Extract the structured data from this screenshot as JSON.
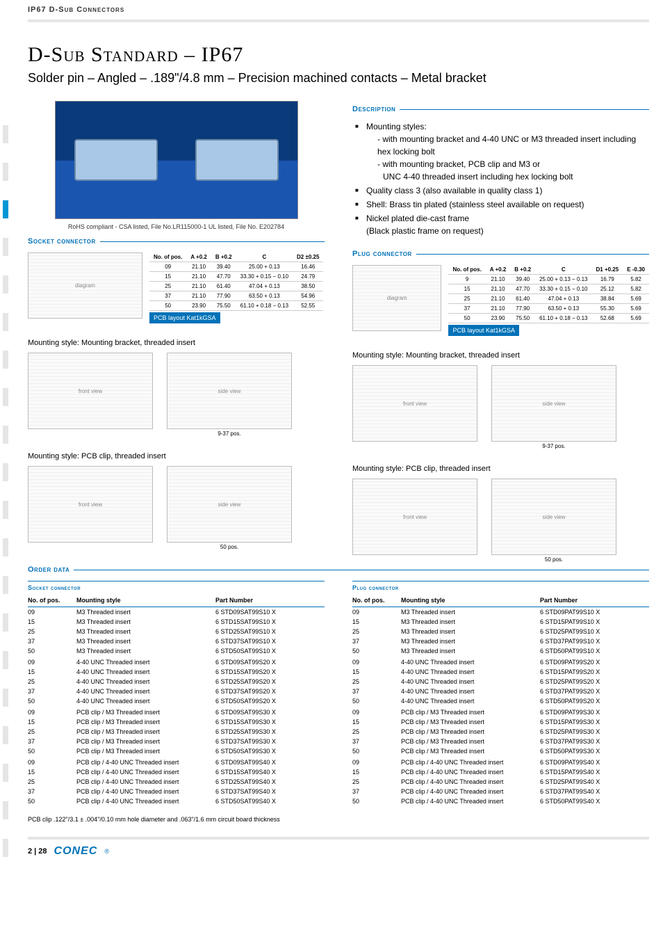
{
  "header": "IP67 D-Sub Connectors",
  "title": "D-Sub Standard – IP67",
  "subtitle": "Solder pin – Angled – .189\"/4.8 mm – Precision machined contacts – Metal bracket",
  "img_caption": "RoHS compliant - CSA listed, File No.LR115000-1 UL listed, File No. E202784",
  "sections": {
    "socket": "Socket connector",
    "plug": "Plug connector",
    "description": "Description",
    "order": "Order data"
  },
  "description": {
    "item1": "Mounting styles:",
    "item1a": "- with mounting bracket and 4-40 UNC or M3 threaded insert including hex locking bolt",
    "item1b": "- with mounting bracket, PCB clip and M3 or",
    "item1b2": "UNC 4-40 threaded insert including hex locking bolt",
    "item2": "Quality class 3 (also available in quality class 1)",
    "item3": "Shell: Brass tin plated (stainless steel available on request)",
    "item4": "Nickel plated die-cast frame",
    "item4b": "(Black plastic frame on request)"
  },
  "pcb_layout": "PCB layout Kat1kGSA",
  "socket_dims": {
    "headers": [
      "No. of pos.",
      "A +0.2",
      "B +0.2",
      "C",
      "D2 ±0.25"
    ],
    "rows": [
      [
        "09",
        "21.10",
        "39.40",
        "25.00 + 0.13",
        "16.46"
      ],
      [
        "15",
        "21.10",
        "47.70",
        "33.30 + 0.15 − 0.10",
        "24.79"
      ],
      [
        "25",
        "21.10",
        "61.40",
        "47.04 + 0.13",
        "38.50"
      ],
      [
        "37",
        "21.10",
        "77.90",
        "63.50 + 0.13",
        "54.96"
      ],
      [
        "50",
        "23.90",
        "75.50",
        "61.10 + 0.18 − 0.13",
        "52.55"
      ]
    ]
  },
  "plug_dims": {
    "headers": [
      "No. of pos.",
      "A +0.2",
      "B +0.2",
      "C",
      "D1 +0.25",
      "E -0.30"
    ],
    "rows": [
      [
        "9",
        "21.10",
        "39.40",
        "25.00 + 0.13 − 0.13",
        "16.79",
        "5.82"
      ],
      [
        "15",
        "21.10",
        "47.70",
        "33.30 + 0.15 − 0.10",
        "25.12",
        "5.82"
      ],
      [
        "25",
        "21.10",
        "61.40",
        "47.04 + 0.13",
        "38.84",
        "5.69"
      ],
      [
        "37",
        "21.10",
        "77.90",
        "63.50 + 0.13",
        "55.30",
        "5.69"
      ],
      [
        "50",
        "23.90",
        "75.50",
        "61.10 + 0.18 − 0.13",
        "52.68",
        "5.69"
      ]
    ]
  },
  "mount_labels": {
    "bracket": "Mounting style: Mounting bracket, threaded insert",
    "pcbclip": "Mounting style: PCB clip, threaded insert"
  },
  "pos_labels": {
    "a": "9-37 pos.",
    "b": "50 pos."
  },
  "order_headers": [
    "No. of pos.",
    "Mounting style",
    "Part Number"
  ],
  "order_groups": {
    "socket": "Socket connector",
    "plug": "Plug connector"
  },
  "mounting_styles": [
    "M3 Threaded insert",
    "4-40 UNC Threaded insert",
    "PCB clip / M3 Threaded insert",
    "PCB clip / 4-40 UNC Threaded insert"
  ],
  "positions": [
    "09",
    "15",
    "25",
    "37",
    "50"
  ],
  "socket_order": [
    [
      "09",
      "M3 Threaded insert",
      "6 STD09SAT99S10 X"
    ],
    [
      "15",
      "M3 Threaded insert",
      "6 STD15SAT99S10 X"
    ],
    [
      "25",
      "M3 Threaded insert",
      "6 STD25SAT99S10 X"
    ],
    [
      "37",
      "M3 Threaded insert",
      "6 STD37SAT99S10 X"
    ],
    [
      "50",
      "M3 Threaded insert",
      "6 STD50SAT99S10 X"
    ],
    [
      "09",
      "4-40 UNC Threaded insert",
      "6 STD09SAT99S20 X"
    ],
    [
      "15",
      "4-40 UNC Threaded insert",
      "6 STD15SAT99S20 X"
    ],
    [
      "25",
      "4-40 UNC Threaded insert",
      "6 STD25SAT99S20 X"
    ],
    [
      "37",
      "4-40 UNC Threaded insert",
      "6 STD37SAT99S20 X"
    ],
    [
      "50",
      "4-40 UNC Threaded insert",
      "6 STD50SAT99S20 X"
    ],
    [
      "09",
      "PCB clip / M3 Threaded insert",
      "6 STD09SAT99S30 X"
    ],
    [
      "15",
      "PCB clip / M3 Threaded insert",
      "6 STD15SAT99S30 X"
    ],
    [
      "25",
      "PCB clip / M3 Threaded insert",
      "6 STD25SAT99S30 X"
    ],
    [
      "37",
      "PCB clip / M3 Threaded insert",
      "6 STD37SAT99S30 X"
    ],
    [
      "50",
      "PCB clip / M3 Threaded insert",
      "6 STD50SAT99S30 X"
    ],
    [
      "09",
      "PCB clip / 4-40 UNC Threaded insert",
      "6 STD09SAT99S40 X"
    ],
    [
      "15",
      "PCB clip / 4-40 UNC Threaded insert",
      "6 STD15SAT99S40 X"
    ],
    [
      "25",
      "PCB clip / 4-40 UNC Threaded insert",
      "6 STD25SAT99S40 X"
    ],
    [
      "37",
      "PCB clip / 4-40 UNC Threaded insert",
      "6 STD37SAT99S40 X"
    ],
    [
      "50",
      "PCB clip / 4-40 UNC Threaded insert",
      "6 STD50SAT99S40 X"
    ]
  ],
  "plug_order": [
    [
      "09",
      "M3 Threaded insert",
      "6 STD09PAT99S10 X"
    ],
    [
      "15",
      "M3 Threaded insert",
      "6 STD15PAT99S10 X"
    ],
    [
      "25",
      "M3 Threaded insert",
      "6 STD25PAT99S10 X"
    ],
    [
      "37",
      "M3 Threaded insert",
      "6 STD37PAT99S10 X"
    ],
    [
      "50",
      "M3 Threaded insert",
      "6 STD50PAT99S10 X"
    ],
    [
      "09",
      "4-40 UNC Threaded insert",
      "6 STD09PAT99S20 X"
    ],
    [
      "15",
      "4-40 UNC Threaded insert",
      "6 STD15PAT99S20 X"
    ],
    [
      "25",
      "4-40 UNC Threaded insert",
      "6 STD25PAT99S20 X"
    ],
    [
      "37",
      "4-40 UNC Threaded insert",
      "6 STD37PAT99S20 X"
    ],
    [
      "50",
      "4-40 UNC Threaded insert",
      "6 STD50PAT99S20 X"
    ],
    [
      "09",
      "PCB clip / M3 Threaded insert",
      "6 STD09PAT99S30 X"
    ],
    [
      "15",
      "PCB clip / M3 Threaded insert",
      "6 STD15PAT99S30 X"
    ],
    [
      "25",
      "PCB clip / M3 Threaded insert",
      "6 STD25PAT99S30 X"
    ],
    [
      "37",
      "PCB clip / M3 Threaded insert",
      "6 STD37PAT99S30 X"
    ],
    [
      "50",
      "PCB clip / M3 Threaded insert",
      "6 STD50PAT99S30 X"
    ],
    [
      "09",
      "PCB clip / 4-40 UNC Threaded insert",
      "6 STD09PAT99S40 X"
    ],
    [
      "15",
      "PCB clip / 4-40 UNC Threaded insert",
      "6 STD15PAT99S40 X"
    ],
    [
      "25",
      "PCB clip / 4-40 UNC Threaded insert",
      "6 STD25PAT99S40 X"
    ],
    [
      "37",
      "PCB clip / 4-40 UNC Threaded insert",
      "6 STD37PAT99S40 X"
    ],
    [
      "50",
      "PCB clip / 4-40 UNC Threaded insert",
      "6 STD50PAT99S40 X"
    ]
  ],
  "footnote": "PCB clip .122\"/3.1 ± .004\"/0.10 mm hole diameter and .063\"/1.6 mm circuit board thickness",
  "page_num": "2 | 28",
  "brand": "CONEC",
  "colors": {
    "accent": "#0072b8",
    "light_gray": "#e5e5e5"
  }
}
